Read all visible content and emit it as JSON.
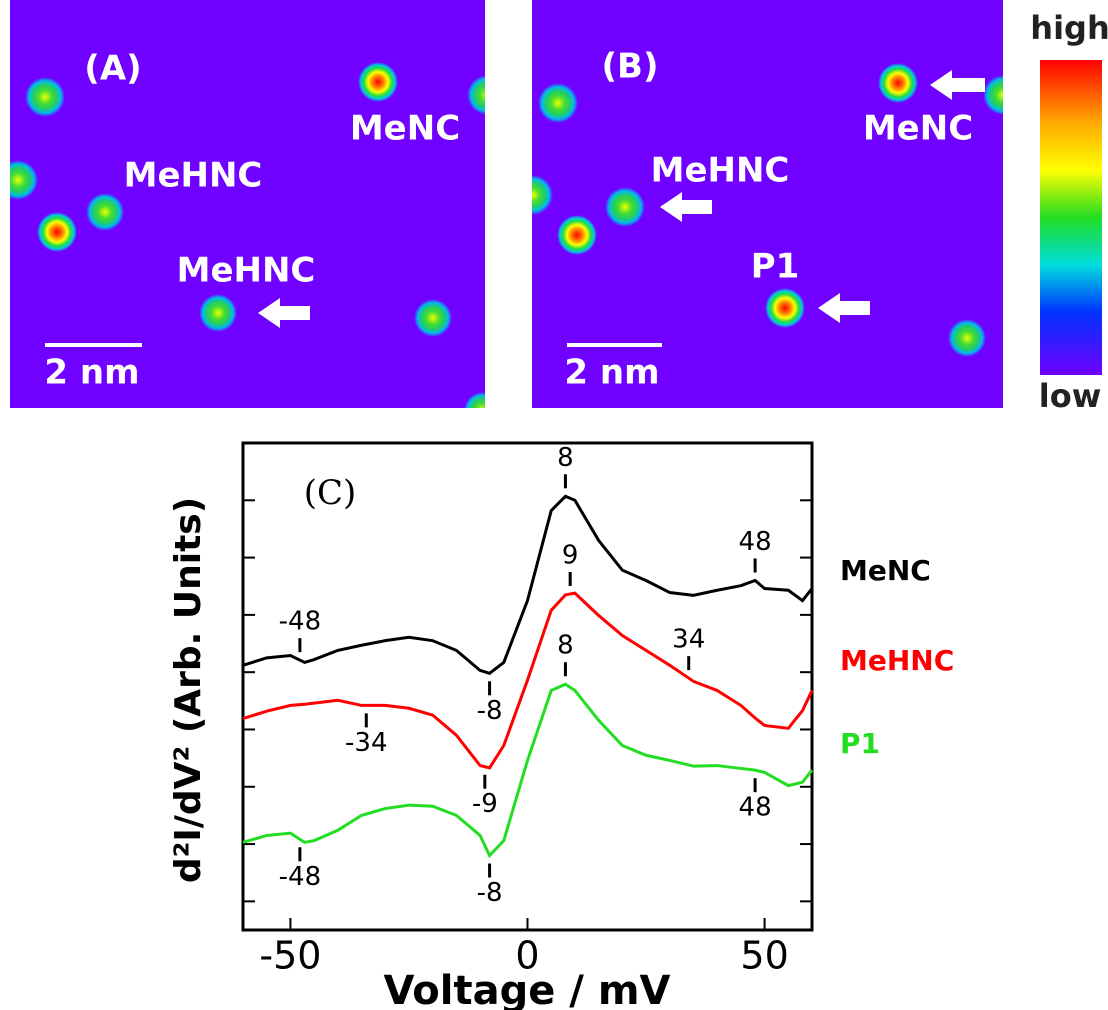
{
  "panels": [
    {
      "label": "(A)",
      "molecules": [
        "MeNC",
        "MeHNC",
        "MeHNC"
      ],
      "scale_bar": "2 nm"
    },
    {
      "label": "(B)",
      "molecules": [
        "MeNC",
        "MeHNC",
        "P1"
      ],
      "scale_bar": "2 nm"
    }
  ],
  "colorbar": {
    "high": "high",
    "low": "low"
  },
  "chart_data": {
    "type": "line",
    "title": "(C)",
    "xlabel": "Voltage / mV",
    "ylabel": "d²I/dV² (Arb. Units)",
    "x": [
      -60,
      -55,
      -50,
      -47,
      -45,
      -40,
      -35,
      -30,
      -25,
      -20,
      -15,
      -10,
      -8,
      -5,
      0,
      5,
      8,
      10,
      15,
      20,
      25,
      30,
      35,
      40,
      45,
      48,
      50,
      55,
      58,
      60
    ],
    "series": [
      {
        "name": "MeNC",
        "color": "#000000",
        "values": [
          4.12,
          4.25,
          4.29,
          4.17,
          4.22,
          4.38,
          4.47,
          4.55,
          4.61,
          4.55,
          4.38,
          4.03,
          3.98,
          4.17,
          5.25,
          6.82,
          7.07,
          7.0,
          6.3,
          5.78,
          5.6,
          5.39,
          5.34,
          5.43,
          5.51,
          5.6,
          5.46,
          5.43,
          5.25,
          5.46
        ]
      },
      {
        "name": "MeHNC",
        "color": "#ff0000",
        "values": [
          3.19,
          3.32,
          3.42,
          3.44,
          3.46,
          3.51,
          3.42,
          3.42,
          3.37,
          3.25,
          2.9,
          2.37,
          2.33,
          2.72,
          3.86,
          5.08,
          5.35,
          5.38,
          4.99,
          4.64,
          4.38,
          4.12,
          3.84,
          3.68,
          3.42,
          3.2,
          3.07,
          3.02,
          3.33,
          3.68
        ]
      },
      {
        "name": "P1",
        "color": "#22dd22",
        "values": [
          1.03,
          1.15,
          1.19,
          1.03,
          1.06,
          1.24,
          1.5,
          1.62,
          1.68,
          1.66,
          1.5,
          1.15,
          0.8,
          1.06,
          2.46,
          3.68,
          3.79,
          3.68,
          3.16,
          2.72,
          2.55,
          2.46,
          2.36,
          2.37,
          2.32,
          2.29,
          2.25,
          2.02,
          2.08,
          2.29
        ]
      }
    ],
    "annotations": [
      {
        "series": 0,
        "value": 8,
        "side": "above"
      },
      {
        "series": 0,
        "value": 48,
        "side": "above"
      },
      {
        "series": 0,
        "value": -48,
        "side": "above"
      },
      {
        "series": 0,
        "value": -8,
        "side": "below"
      },
      {
        "series": 1,
        "value": 9,
        "side": "above"
      },
      {
        "series": 1,
        "value": 34,
        "side": "above"
      },
      {
        "series": 1,
        "value": -34,
        "side": "below"
      },
      {
        "series": 1,
        "value": -9,
        "side": "below"
      },
      {
        "series": 2,
        "value": 8,
        "side": "above"
      },
      {
        "series": 2,
        "value": -8,
        "side": "below"
      },
      {
        "series": 2,
        "value": -48,
        "side": "below"
      },
      {
        "series": 2,
        "value": 48,
        "side": "below"
      }
    ],
    "xlim": [
      -60,
      60
    ],
    "xticks": [
      -50,
      0,
      50
    ],
    "ylim": [
      -0.5,
      8
    ],
    "yticks": [
      0,
      1,
      2,
      3,
      4,
      5,
      6,
      7
    ]
  }
}
